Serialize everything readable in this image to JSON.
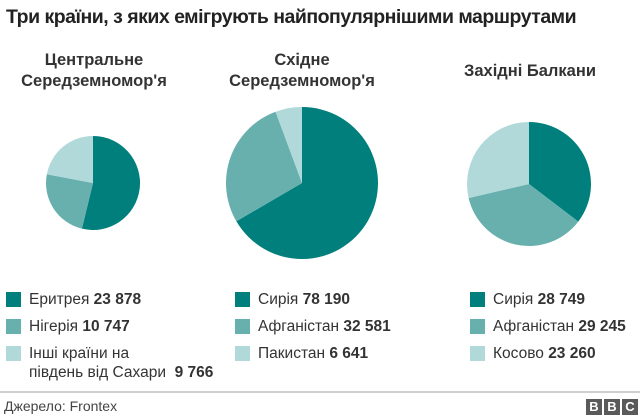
{
  "title": "Три країни, з яких емігрують найпопулярнішими маршрутами",
  "colors": {
    "dark": "#007f7c",
    "mid": "#68b0ae",
    "light": "#b1d9da"
  },
  "pies": [
    {
      "title_line1": "Центральне",
      "title_line2": "Середземномор'я",
      "legend": [
        {
          "label": "Еритрея",
          "value": "23 878"
        },
        {
          "label": "Нігерія",
          "value": "10 747"
        },
        {
          "label": "Інші країни на",
          "label2": "південь від Сахари",
          "value": "9 766"
        }
      ]
    },
    {
      "title_line1": "Східне",
      "title_line2": "Середземномор'я",
      "legend": [
        {
          "label": "Сирія",
          "value": "78 190"
        },
        {
          "label": "Афганістан",
          "value": "32 581"
        },
        {
          "label": "Пакистан",
          "value": "6 641"
        }
      ]
    },
    {
      "title_line1": "Західні Балкани",
      "legend": [
        {
          "label": "Сирія",
          "value": "28 749"
        },
        {
          "label": "Афганістан",
          "value": "29 245"
        },
        {
          "label": "Косово",
          "value": "23 260"
        }
      ]
    }
  ],
  "footer": {
    "source": "Джерело: Frontex",
    "logo": [
      "B",
      "B",
      "C"
    ]
  },
  "chart_data": [
    {
      "type": "pie",
      "title": "Центральне Середземномор'я",
      "categories": [
        "Еритрея",
        "Нігерія",
        "Інші країни на південь від Сахари"
      ],
      "values": [
        23878,
        10747,
        9766
      ],
      "colors": [
        "#007f7c",
        "#68b0ae",
        "#b1d9da"
      ]
    },
    {
      "type": "pie",
      "title": "Східне Середземномор'я",
      "categories": [
        "Сирія",
        "Афганістан",
        "Пакистан"
      ],
      "values": [
        78190,
        32581,
        6641
      ],
      "colors": [
        "#007f7c",
        "#68b0ae",
        "#b1d9da"
      ]
    },
    {
      "type": "pie",
      "title": "Західні Балкани",
      "categories": [
        "Сирія",
        "Афганістан",
        "Косово"
      ],
      "values": [
        28749,
        29245,
        23260
      ],
      "colors": [
        "#007f7c",
        "#68b0ae",
        "#b1d9da"
      ]
    }
  ]
}
